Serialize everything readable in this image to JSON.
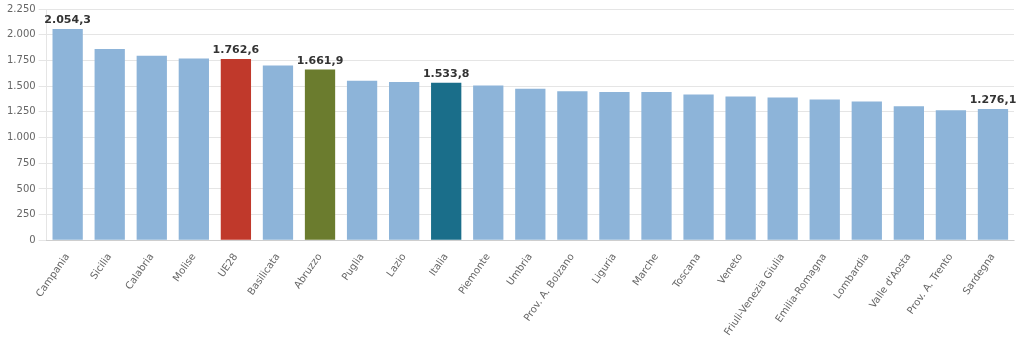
{
  "chart_data": {
    "type": "bar",
    "categories": [
      "Campania",
      "Sicilia",
      "Calabria",
      "Molise",
      "UE28",
      "Basilicata",
      "Abruzzo",
      "Puglia",
      "Lazio",
      "Italia",
      "Piemonte",
      "Umbria",
      "Prov. A. Bolzano",
      "Liguria",
      "Marche",
      "Toscana",
      "Veneto",
      "Friuli-Venezia Giulia",
      "Emilia-Romagna",
      "Lombardia",
      "Valle d'Aosta",
      "Prov. A. Trento",
      "Sardegna"
    ],
    "values": [
      2054.3,
      1860.0,
      1795.0,
      1768.0,
      1762.6,
      1700.0,
      1661.9,
      1552.0,
      1540.0,
      1533.8,
      1505.0,
      1475.0,
      1450.0,
      1442.0,
      1442.0,
      1418.0,
      1400.0,
      1390.0,
      1370.0,
      1350.0,
      1305.0,
      1265.0,
      1276.1
    ],
    "value_labels": [
      "2.054,3",
      null,
      null,
      null,
      "1.762,6",
      null,
      "1.661,9",
      null,
      null,
      "1.533,8",
      null,
      null,
      null,
      null,
      null,
      null,
      null,
      null,
      null,
      null,
      null,
      null,
      "1.276,1"
    ],
    "colors": [
      "#8db4d9",
      "#8db4d9",
      "#8db4d9",
      "#8db4d9",
      "#c0392b",
      "#8db4d9",
      "#6b7c2e",
      "#8db4d9",
      "#8db4d9",
      "#1a6e8a",
      "#8db4d9",
      "#8db4d9",
      "#8db4d9",
      "#8db4d9",
      "#8db4d9",
      "#8db4d9",
      "#8db4d9",
      "#8db4d9",
      "#8db4d9",
      "#8db4d9",
      "#8db4d9",
      "#8db4d9",
      "#8db4d9"
    ],
    "ylim": [
      0,
      2250
    ],
    "yticks": [
      0,
      250,
      500,
      750,
      {
        "value": 1000,
        "label": "1.000"
      },
      {
        "value": 1250,
        "label": "1.250"
      },
      {
        "value": 1500,
        "label": "1.500"
      },
      {
        "value": 1750,
        "label": "1.750"
      },
      {
        "value": 2000,
        "label": "2.000"
      },
      {
        "value": 2250,
        "label": "2.250"
      }
    ],
    "grid": true
  }
}
